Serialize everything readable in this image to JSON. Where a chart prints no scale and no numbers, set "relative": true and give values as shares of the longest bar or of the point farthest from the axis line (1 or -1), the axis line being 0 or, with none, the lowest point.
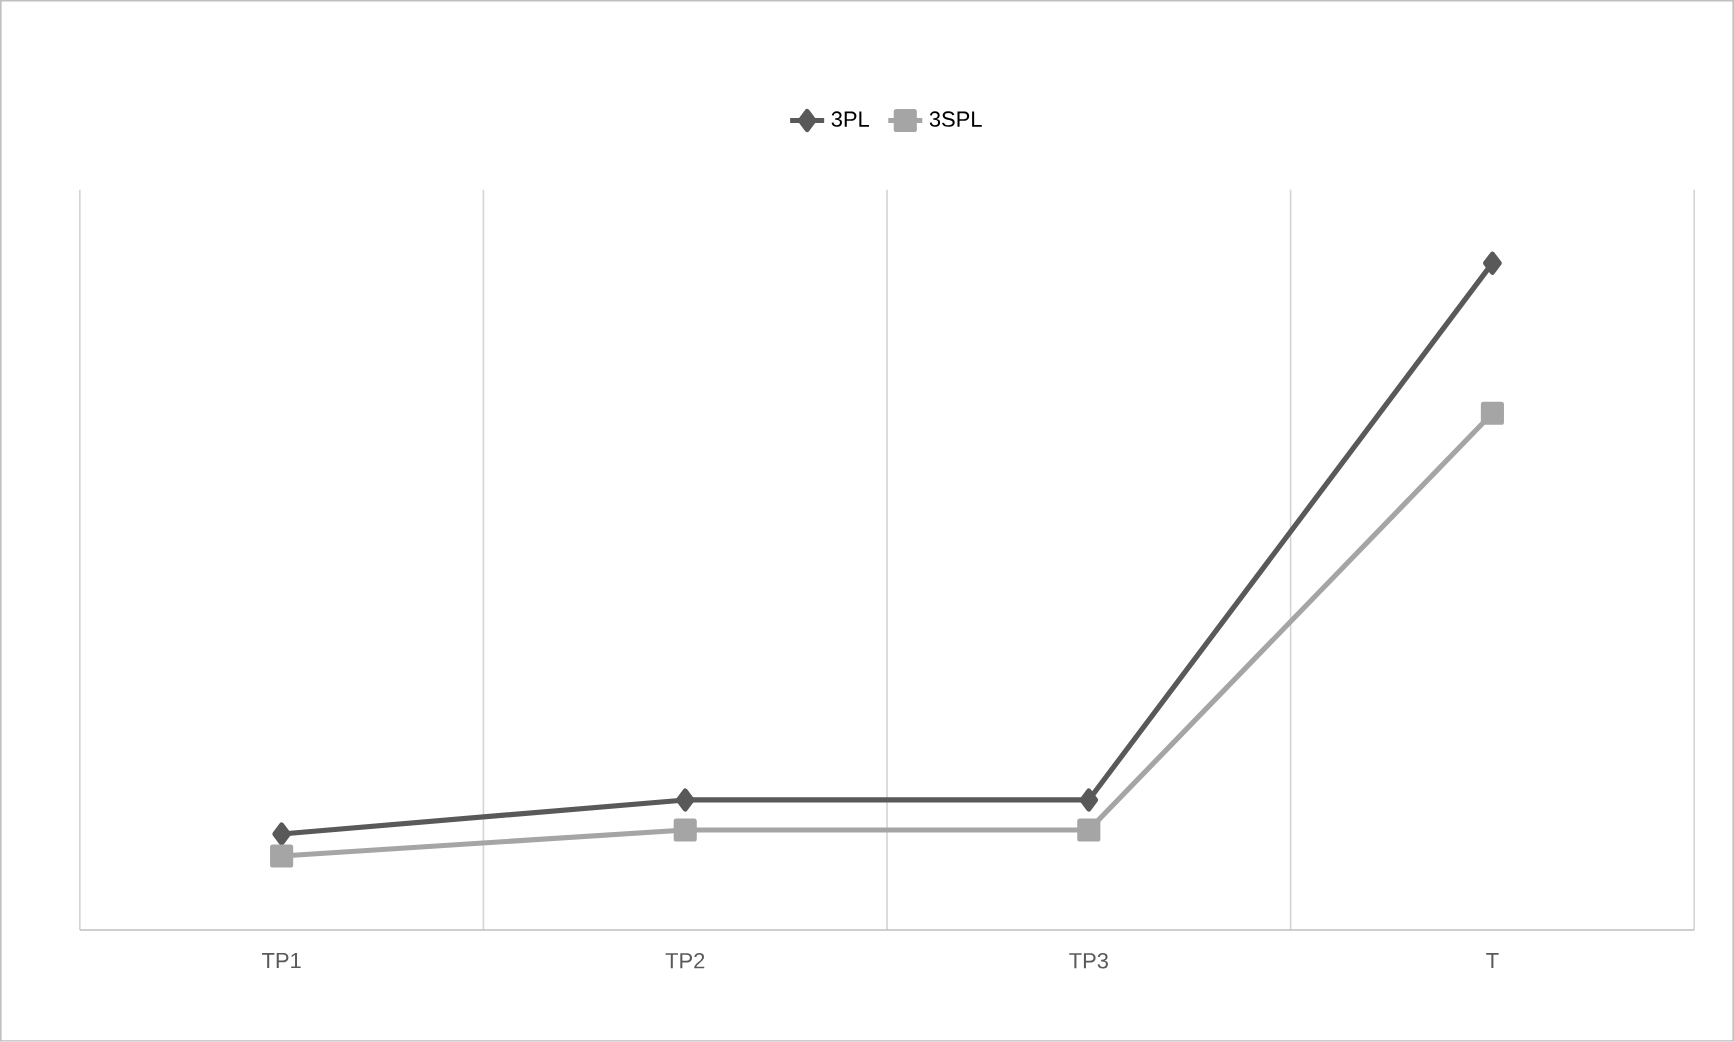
{
  "chart_data": {
    "type": "line",
    "relative": true,
    "categories": [
      "TP1",
      "TP2",
      "TP3",
      "T"
    ],
    "series": [
      {
        "name": "3PL",
        "color": "#595959",
        "marker": "diamond",
        "values": [
          0.144,
          0.195,
          0.195,
          1
        ]
      },
      {
        "name": "3SPL",
        "color": "#a5a5a5",
        "marker": "square",
        "values": [
          0.111,
          0.15,
          0.15,
          0.775
        ]
      }
    ],
    "grid": "x",
    "legend": "top",
    "line_style": "solid"
  }
}
